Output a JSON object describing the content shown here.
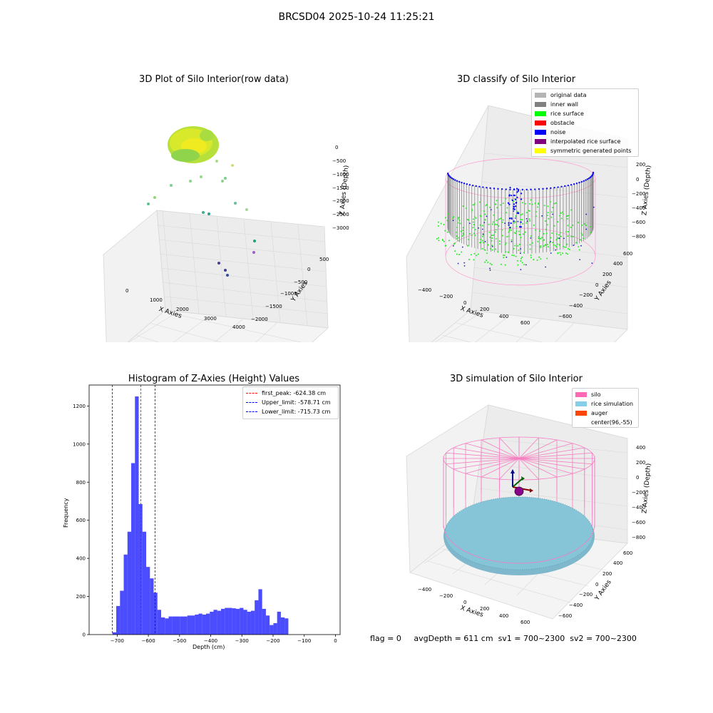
{
  "figure": {
    "suptitle": "BRCSD04 2025-10-24 11:25:21",
    "footer": {
      "flag": "flag = 0",
      "avg_depth": "avgDepth = 611 cm",
      "sv1": "sv1 = 700~2300",
      "sv2": "sv2 = 700~2300"
    }
  },
  "chart_data": [
    {
      "id": "raw",
      "type": "scatter",
      "title": "3D Plot of Silo Interior(row data)",
      "xlabel": "X Axies",
      "ylabel": "Y Axies",
      "zlabel": "Z Axies (Depth)",
      "x_ticks": [
        "0",
        "1000",
        "2000",
        "3000",
        "4000"
      ],
      "y_ticks": [
        "500",
        "0",
        "−500",
        "−1000",
        "−1500",
        "−2000"
      ],
      "z_ticks": [
        "0",
        "−500",
        "−1000",
        "−1500",
        "−2000",
        "−2500",
        "−3000"
      ],
      "grid": true
    },
    {
      "id": "classify",
      "type": "scatter",
      "title": "3D classify of Silo Interior",
      "xlabel": "X Axies",
      "ylabel": "Y Axies",
      "zlabel": "Z Axies (Depth)",
      "x_ticks": [
        "−400",
        "−200",
        "0",
        "200",
        "400",
        "600"
      ],
      "y_ticks": [
        "600",
        "400",
        "200",
        "0",
        "−200",
        "−400",
        "−600"
      ],
      "z_ticks": [
        "200",
        "0",
        "−200",
        "−400",
        "−600",
        "−800"
      ],
      "legend_placement": "top-right",
      "legend": [
        {
          "label": "original data",
          "color": "#b4b4b4"
        },
        {
          "label": "inner wall",
          "color": "#808080"
        },
        {
          "label": "rice surface",
          "color": "#00ff00"
        },
        {
          "label": "obstacle",
          "color": "#ff0000"
        },
        {
          "label": "noise",
          "color": "#0000ff"
        },
        {
          "label": "interpolated rice surface",
          "color": "#800080"
        },
        {
          "label": "symmetric generated points",
          "color": "#ffff00"
        }
      ],
      "grid": true
    },
    {
      "id": "hist",
      "type": "bar",
      "title": "Histogram of Z-Axies (Height) Values",
      "xlabel": "Depth (cm)",
      "ylabel": "Frequency",
      "xlim": [
        -790,
        15
      ],
      "ylim": [
        0,
        1310
      ],
      "x_ticks": [
        -700,
        -600,
        -500,
        -400,
        -300,
        -200,
        -100,
        0
      ],
      "y_ticks": [
        0,
        200,
        400,
        600,
        800,
        1000,
        1200
      ],
      "bar_color": "#0000ff",
      "bin_start": -715,
      "bin_width": 12,
      "values": [
        12,
        150,
        230,
        420,
        540,
        900,
        1250,
        685,
        540,
        355,
        295,
        220,
        130,
        90,
        85,
        95,
        95,
        95,
        95,
        95,
        100,
        100,
        105,
        110,
        105,
        110,
        120,
        130,
        125,
        135,
        140,
        140,
        138,
        135,
        140,
        130,
        120,
        125,
        180,
        238,
        135,
        100,
        50,
        60,
        120,
        90,
        85
      ],
      "vlines": [
        {
          "label": "first_peak: -624.38 cm",
          "x": -624.38,
          "color": "#ff0000"
        },
        {
          "label": "Upper_limit: -578.71 cm",
          "x": -578.71,
          "color": "#0000ff"
        },
        {
          "label": "Lower_limit: -715.73 cm",
          "x": -715.73,
          "color": "#0000ff"
        }
      ],
      "legend_placement": "top-right",
      "grid": false
    },
    {
      "id": "sim",
      "type": "scatter",
      "title": "3D simulation of Silo Interior",
      "xlabel": "X Axies",
      "ylabel": "Y Axies",
      "zlabel": "Z Axies (Depth)",
      "x_ticks": [
        "−400",
        "−200",
        "0",
        "200",
        "400",
        "600"
      ],
      "y_ticks": [
        "600",
        "400",
        "200",
        "0",
        "−200",
        "−400",
        "−600"
      ],
      "z_ticks": [
        "400",
        "200",
        "0",
        "−200",
        "−400",
        "−600",
        "−800"
      ],
      "legend_placement": "top-right",
      "legend": [
        {
          "label": "silo",
          "color": "#ff69b4"
        },
        {
          "label": "rice simulation",
          "color": "#87ceeb"
        },
        {
          "label": "auger",
          "color": "#ff4500"
        },
        {
          "label": "center(96,-55)",
          "color": ""
        }
      ],
      "grid": true
    }
  ]
}
